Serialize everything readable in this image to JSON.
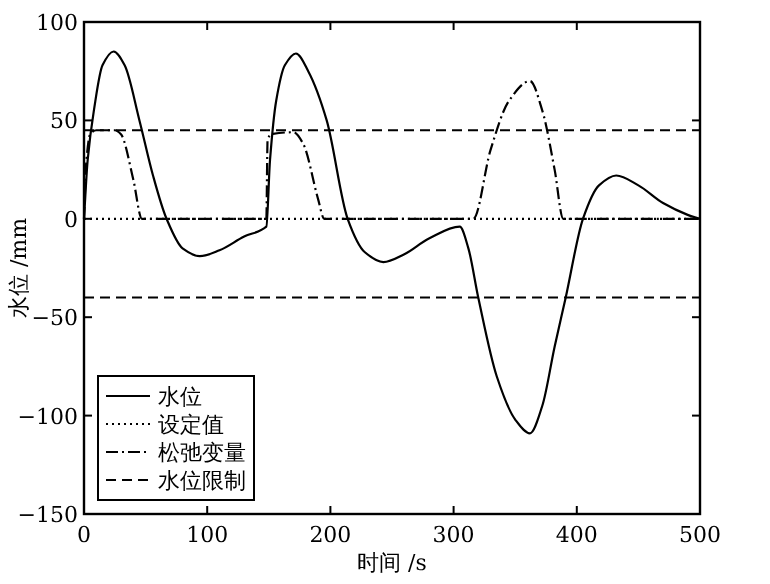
{
  "chart_data": {
    "type": "line",
    "xlabel": "时间 /s",
    "ylabel": "水位 /mm",
    "xlim": [
      0,
      500
    ],
    "ylim": [
      -150,
      100
    ],
    "xticks": [
      0,
      100,
      200,
      300,
      400,
      500
    ],
    "yticks": [
      -150,
      -100,
      -50,
      0,
      50,
      100
    ],
    "grid": false,
    "legend": "bottom left",
    "marker": "none",
    "series": [
      {
        "name": "水位",
        "color": "#000000",
        "line_style": "solid",
        "x": [
          0,
          3,
          8,
          15,
          24,
          33,
          45,
          56,
          67,
          80,
          94,
          110,
          130,
          148,
          151,
          156,
          163,
          172,
          182,
          197,
          214,
          228,
          243,
          260,
          280,
          305,
          312,
          320,
          335,
          350,
          362,
          372,
          382,
          391,
          405,
          418,
          432,
          450,
          470,
          490,
          500
        ],
        "values": [
          0,
          30,
          55,
          78,
          85,
          78,
          50,
          22,
          0,
          -15,
          -19,
          -16,
          -9,
          -4,
          30,
          60,
          78,
          84,
          75,
          50,
          0,
          -17,
          -22,
          -18,
          -10,
          -4,
          -15,
          -40,
          -80,
          -102,
          -109,
          -95,
          -65,
          -40,
          0,
          17,
          22,
          17,
          8,
          2,
          0
        ]
      },
      {
        "name": "设定值",
        "color": "#000000",
        "line_style": "dotted",
        "x": [
          0,
          500
        ],
        "values": [
          0,
          0
        ]
      },
      {
        "name": "松弛变量",
        "color": "#000000",
        "line_style": "dashdot",
        "x": [
          0,
          2,
          5,
          10,
          25,
          30,
          40,
          47,
          148,
          149,
          152,
          170,
          178,
          190,
          195,
          316,
          330,
          345,
          362,
          372,
          382,
          389,
          500
        ],
        "values": [
          0,
          30,
          43,
          45,
          45,
          43,
          20,
          0,
          0,
          40,
          43,
          44,
          38,
          10,
          0,
          0,
          35,
          60,
          70,
          55,
          25,
          0,
          0
        ]
      },
      {
        "name": "水位限制",
        "color": "#000000",
        "line_style": "dashed",
        "x": [
          0,
          500
        ],
        "values": [
          45,
          45
        ]
      },
      {
        "color": "#000000",
        "line_style": "dashed",
        "x": [
          0,
          500
        ],
        "values": [
          -40,
          -40
        ]
      }
    ]
  }
}
